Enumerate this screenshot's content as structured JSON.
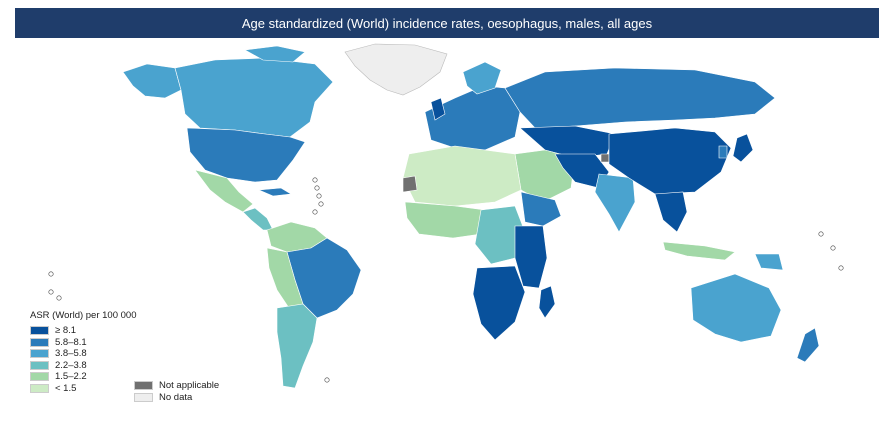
{
  "title": "Age standardized (World) incidence rates, oesophagus, males, all ages",
  "legend": {
    "title": "ASR (World) per 100 000",
    "classes": [
      {
        "label": "≥ 8.1",
        "color": "#08519c"
      },
      {
        "label": "5.8–8.1",
        "color": "#2b7bba"
      },
      {
        "label": "3.8–5.8",
        "color": "#4aa3cf"
      },
      {
        "label": "2.2–3.8",
        "color": "#6cc0c2"
      },
      {
        "label": "1.5–2.2",
        "color": "#a2d8a7"
      },
      {
        "label": "< 1.5",
        "color": "#cdebc5"
      }
    ],
    "extra": [
      {
        "label": "Not applicable",
        "color": "#707070"
      },
      {
        "label": "No data",
        "color": "#eeeeee"
      }
    ]
  }
}
